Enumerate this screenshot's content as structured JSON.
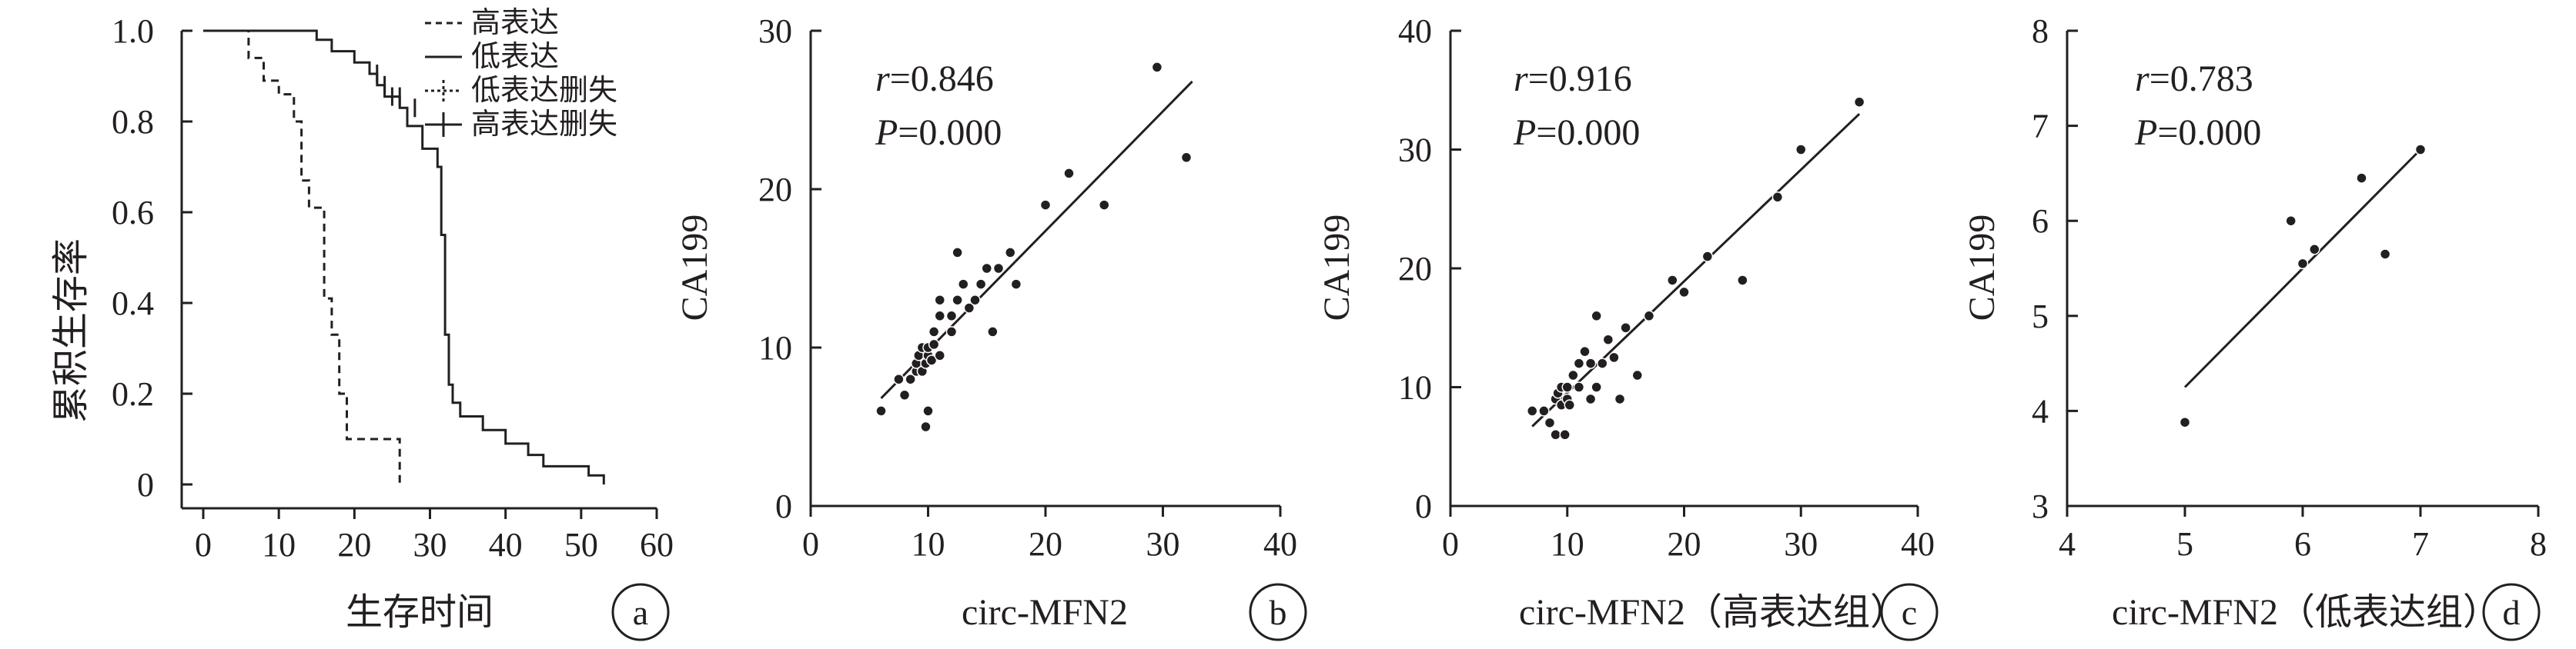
{
  "chart_data": [
    {
      "type": "line",
      "panel": "a",
      "xlabel": "生存时间",
      "ylabel": "累积生存率",
      "xlim": [
        0,
        60
      ],
      "ylim": [
        0,
        1.0
      ],
      "x_ticks": [
        "0",
        "10",
        "20",
        "30",
        "40",
        "50",
        "60"
      ],
      "y_ticks": [
        "0",
        "0.2",
        "0.4",
        "0.6",
        "0.8",
        "1.0"
      ],
      "legend": [
        "高表达",
        "低表达",
        "低表达删失",
        "高表达删失"
      ],
      "legend_placement": "top-right",
      "series": [
        {
          "name": "高表达",
          "style": "dashed",
          "x": [
            0,
            6,
            6,
            8,
            8,
            10,
            10,
            12,
            12,
            13,
            13,
            14,
            14,
            16,
            16,
            17,
            17,
            18,
            18,
            19,
            19,
            26,
            26
          ],
          "y": [
            1.0,
            1.0,
            0.94,
            0.94,
            0.89,
            0.89,
            0.86,
            0.86,
            0.8,
            0.8,
            0.67,
            0.67,
            0.61,
            0.61,
            0.41,
            0.41,
            0.33,
            0.33,
            0.2,
            0.2,
            0.1,
            0.1,
            0
          ]
        },
        {
          "name": "低表达",
          "style": "solid",
          "x": [
            0,
            15,
            15,
            17,
            17,
            20,
            20,
            22,
            22,
            23,
            23,
            24,
            24,
            26,
            26,
            27,
            27,
            29,
            29,
            31,
            31,
            31.5,
            31.5,
            32,
            32,
            32.5,
            32.5,
            33,
            33,
            34,
            34,
            37,
            37,
            40,
            40,
            43,
            43,
            45,
            45,
            51,
            51,
            53,
            53
          ],
          "y": [
            1.0,
            1.0,
            0.98,
            0.98,
            0.955,
            0.955,
            0.93,
            0.93,
            0.905,
            0.905,
            0.88,
            0.88,
            0.855,
            0.855,
            0.83,
            0.83,
            0.79,
            0.79,
            0.74,
            0.74,
            0.7,
            0.7,
            0.55,
            0.55,
            0.33,
            0.33,
            0.22,
            0.22,
            0.18,
            0.18,
            0.15,
            0.15,
            0.12,
            0.12,
            0.09,
            0.09,
            0.065,
            0.065,
            0.04,
            0.04,
            0.02,
            0.02,
            0
          ]
        }
      ]
    },
    {
      "type": "scatter",
      "panel": "b",
      "xlabel": "circ-MFN2",
      "ylabel": "CA199",
      "xlim": [
        0,
        40
      ],
      "ylim": [
        0,
        30
      ],
      "x_ticks": [
        "0",
        "10",
        "20",
        "30",
        "40"
      ],
      "y_ticks": [
        "0",
        "10",
        "20",
        "30"
      ],
      "r_prefix": "r",
      "r_value": "=0.846",
      "p_prefix": "P",
      "p_value": "=0.000",
      "fit": [
        [
          6,
          6.8
        ],
        [
          32.5,
          26.8
        ]
      ],
      "points": [
        [
          6,
          6
        ],
        [
          7.5,
          8
        ],
        [
          8,
          7
        ],
        [
          8.5,
          8
        ],
        [
          9,
          8.5
        ],
        [
          9,
          9
        ],
        [
          9.2,
          9.5
        ],
        [
          9.5,
          10
        ],
        [
          9.5,
          8.5
        ],
        [
          9.8,
          9
        ],
        [
          10,
          9.5
        ],
        [
          10,
          10
        ],
        [
          10,
          6
        ],
        [
          9.8,
          5
        ],
        [
          10.3,
          9.2
        ],
        [
          10.5,
          10.2
        ],
        [
          10.5,
          11
        ],
        [
          11,
          9.5
        ],
        [
          11,
          12
        ],
        [
          11,
          13
        ],
        [
          12,
          11
        ],
        [
          12,
          12
        ],
        [
          12.5,
          13
        ],
        [
          12.5,
          16
        ],
        [
          13,
          14
        ],
        [
          13.5,
          12.5
        ],
        [
          14,
          13
        ],
        [
          14.5,
          14
        ],
        [
          15,
          15
        ],
        [
          15.5,
          11
        ],
        [
          16,
          15
        ],
        [
          17,
          16
        ],
        [
          17.5,
          14
        ],
        [
          20,
          19
        ],
        [
          22,
          21
        ],
        [
          25,
          19
        ],
        [
          29.5,
          27.7
        ],
        [
          32,
          22
        ]
      ]
    },
    {
      "type": "scatter",
      "panel": "c",
      "xlabel": "circ-MFN2（高表达组）",
      "ylabel": "CA199",
      "xlim": [
        0,
        40
      ],
      "ylim": [
        0,
        40
      ],
      "x_ticks": [
        "0",
        "10",
        "20",
        "30",
        "40"
      ],
      "y_ticks": [
        "0",
        "10",
        "20",
        "30",
        "40"
      ],
      "r_prefix": "r",
      "r_value": "=0.916",
      "p_prefix": "P",
      "p_value": "=0.000",
      "fit": [
        [
          7,
          6.7
        ],
        [
          35,
          33
        ]
      ],
      "points": [
        [
          7,
          8
        ],
        [
          8,
          8
        ],
        [
          8.5,
          7
        ],
        [
          9,
          6
        ],
        [
          9,
          9
        ],
        [
          9.2,
          9.5
        ],
        [
          9.5,
          8.5
        ],
        [
          9.5,
          10
        ],
        [
          9.8,
          6
        ],
        [
          10,
          9
        ],
        [
          10,
          10
        ],
        [
          10.2,
          8.5
        ],
        [
          10.5,
          11
        ],
        [
          11,
          10
        ],
        [
          11,
          12
        ],
        [
          11.5,
          13
        ],
        [
          12,
          9
        ],
        [
          12,
          12
        ],
        [
          12.5,
          16
        ],
        [
          12.5,
          10
        ],
        [
          13,
          12
        ],
        [
          13.5,
          14
        ],
        [
          14,
          12.5
        ],
        [
          14.5,
          9
        ],
        [
          15,
          15
        ],
        [
          16,
          11
        ],
        [
          17,
          16
        ],
        [
          19,
          19
        ],
        [
          20,
          18
        ],
        [
          22,
          21
        ],
        [
          25,
          19
        ],
        [
          28,
          26
        ],
        [
          30,
          30
        ],
        [
          35,
          34
        ]
      ]
    },
    {
      "type": "scatter",
      "panel": "d",
      "xlabel": "circ-MFN2（低表达组）",
      "ylabel": "CA199",
      "xlim": [
        4,
        8
      ],
      "ylim": [
        3,
        8
      ],
      "x_ticks": [
        "4",
        "5",
        "6",
        "7",
        "8"
      ],
      "y_ticks": [
        "3",
        "4",
        "5",
        "6",
        "7",
        "8"
      ],
      "r_prefix": "r",
      "r_value": "=0.783",
      "p_prefix": "P",
      "p_value": "=0.000",
      "fit": [
        [
          5,
          4.25
        ],
        [
          7,
          6.75
        ]
      ],
      "points": [
        [
          5,
          3.88
        ],
        [
          5.9,
          6
        ],
        [
          6,
          5.55
        ],
        [
          6.1,
          5.7
        ],
        [
          6.5,
          6.45
        ],
        [
          6.7,
          5.65
        ],
        [
          7,
          6.75
        ]
      ]
    }
  ]
}
